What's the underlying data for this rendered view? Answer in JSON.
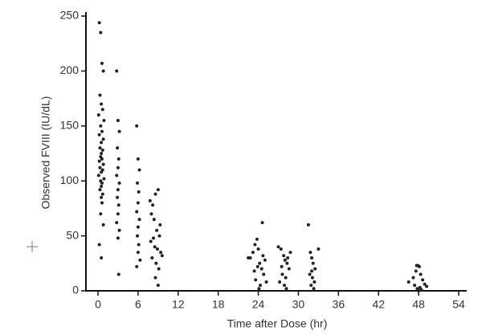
{
  "chart_data": {
    "type": "scatter",
    "x_label": "Time after Dose (hr)",
    "y_label": "Observed FVIII (IU/dL)",
    "color": "#222222",
    "xlim": [
      -1.8,
      55.2
    ],
    "ylim": [
      0,
      250
    ],
    "xticks": [
      0,
      6,
      12,
      18,
      24,
      30,
      36,
      42,
      48,
      54
    ],
    "yticks": [
      0,
      50,
      100,
      150,
      200,
      250
    ],
    "grid": false,
    "x": [
      0.2,
      0.4,
      0.6,
      0.8,
      0.3,
      0.5,
      0.7,
      0.1,
      0.9,
      0.4,
      0.6,
      0.2,
      0.8,
      0.5,
      0.3,
      0.7,
      0.5,
      0.4,
      0.6,
      0.2,
      0.8,
      0.3,
      0.7,
      0.5,
      0.1,
      0.9,
      0.4,
      0.6,
      0.5,
      0.3,
      0.7,
      0.5,
      0.6,
      0.4,
      0.8,
      0.2,
      0.5,
      2.8,
      3.0,
      3.2,
      2.9,
      3.1,
      3.0,
      2.8,
      3.2,
      3.0,
      2.9,
      3.1,
      3.0,
      2.8,
      3.2,
      3.0,
      3.1,
      5.8,
      6.0,
      6.2,
      5.9,
      6.1,
      6.0,
      5.8,
      6.2,
      6.0,
      5.9,
      6.1,
      6.0,
      6.3,
      5.8,
      7.8,
      8.2,
      8.6,
      9.0,
      9.3,
      8.0,
      8.4,
      8.8,
      9.2,
      7.9,
      8.5,
      8.9,
      9.4,
      8.1,
      8.7,
      9.1,
      8.3,
      9.6,
      8.6,
      9.0,
      22.8,
      23.2,
      23.5,
      23.8,
      24.0,
      24.2,
      24.5,
      24.8,
      25.0,
      23.6,
      24.3,
      24.6,
      23.9,
      25.2,
      24.1,
      23.4,
      24.7,
      22.5,
      27.0,
      27.4,
      27.8,
      28.0,
      28.3,
      28.6,
      27.6,
      28.1,
      27.2,
      28.4,
      27.9,
      28.8,
      27.5,
      28.2,
      31.5,
      31.8,
      32.0,
      32.2,
      32.5,
      31.7,
      32.1,
      32.4,
      31.9,
      32.3,
      33.0,
      32.0,
      46.5,
      47.2,
      47.6,
      47.9,
      48.1,
      48.3,
      48.6,
      48.9,
      47.4,
      48.2,
      47.8,
      48.4,
      49.2,
      48.0,
      47.7
    ],
    "values": [
      244,
      235,
      207,
      200,
      178,
      170,
      165,
      160,
      155,
      150,
      145,
      142,
      138,
      135,
      130,
      128,
      125,
      122,
      120,
      118,
      115,
      112,
      110,
      108,
      105,
      102,
      100,
      98,
      95,
      92,
      88,
      85,
      80,
      70,
      60,
      42,
      30,
      200,
      155,
      145,
      130,
      120,
      112,
      105,
      98,
      92,
      85,
      78,
      70,
      62,
      55,
      48,
      15,
      150,
      120,
      110,
      98,
      90,
      80,
      72,
      65,
      58,
      50,
      42,
      35,
      28,
      22,
      82,
      78,
      88,
      92,
      60,
      70,
      65,
      55,
      50,
      45,
      40,
      38,
      35,
      30,
      25,
      20,
      48,
      32,
      12,
      5,
      30,
      35,
      42,
      47,
      38,
      25,
      20,
      15,
      28,
      10,
      5,
      62,
      22,
      8,
      2,
      18,
      32,
      30,
      40,
      38,
      32,
      28,
      25,
      20,
      15,
      12,
      8,
      30,
      5,
      35,
      22,
      2,
      60,
      35,
      30,
      25,
      20,
      15,
      12,
      8,
      5,
      2,
      38,
      18,
      8,
      12,
      18,
      23,
      22,
      15,
      10,
      6,
      5,
      3,
      2,
      1,
      4,
      0,
      23
    ]
  }
}
